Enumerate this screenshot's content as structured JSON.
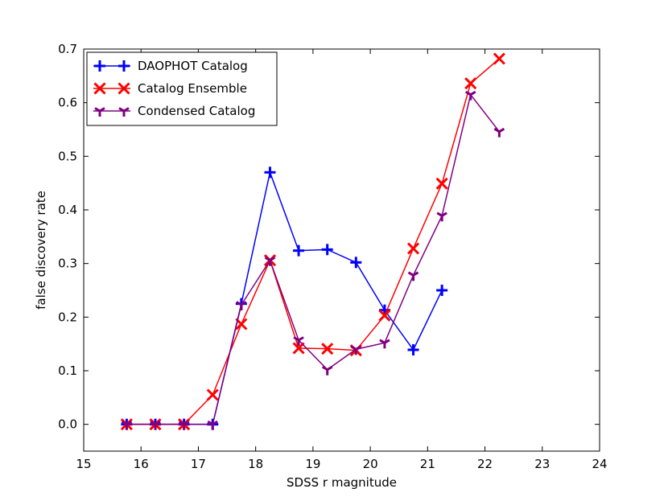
{
  "chart_data": {
    "type": "line",
    "title": "",
    "xlabel": "SDSS r magnitude",
    "ylabel": "false discovery rate",
    "xlim": [
      15,
      24
    ],
    "ylim": [
      -0.05,
      0.7
    ],
    "xticks": [
      15,
      16,
      17,
      18,
      19,
      20,
      21,
      22,
      23,
      24
    ],
    "yticks": [
      0.0,
      0.1,
      0.2,
      0.3,
      0.4,
      0.5,
      0.6,
      0.7
    ],
    "xtick_labels": [
      "15",
      "16",
      "17",
      "18",
      "19",
      "20",
      "21",
      "22",
      "23",
      "24"
    ],
    "ytick_labels": [
      "0.0",
      "0.1",
      "0.2",
      "0.3",
      "0.4",
      "0.5",
      "0.6",
      "0.7"
    ],
    "grid": false,
    "legend_position": "top-left",
    "series": [
      {
        "name": "DAOPHOT Catalog",
        "color": "#0000ff",
        "marker": "plus",
        "x": [
          15.75,
          16.25,
          16.75,
          17.25,
          17.75,
          18.25,
          18.75,
          19.25,
          19.75,
          20.25,
          20.75,
          21.25
        ],
        "values": [
          0.0,
          0.0,
          0.0,
          0.0,
          0.225,
          0.47,
          0.324,
          0.326,
          0.302,
          0.213,
          0.139,
          0.25
        ]
      },
      {
        "name": "Catalog Ensemble",
        "color": "#ff0000",
        "marker": "x",
        "x": [
          15.75,
          16.25,
          16.75,
          17.25,
          17.75,
          18.25,
          18.75,
          19.25,
          19.75,
          20.25,
          20.75,
          21.25,
          21.75,
          22.25
        ],
        "values": [
          0.0,
          0.0,
          0.0,
          0.055,
          0.187,
          0.306,
          0.142,
          0.141,
          0.138,
          0.203,
          0.328,
          0.449,
          0.636,
          0.682
        ]
      },
      {
        "name": "Condensed Catalog",
        "color": "#800080",
        "marker": "tri_down",
        "x": [
          15.75,
          16.25,
          16.75,
          17.25,
          17.75,
          18.25,
          18.75,
          19.25,
          19.75,
          20.25,
          20.75,
          21.25,
          21.75,
          22.25
        ],
        "values": [
          0.0,
          0.0,
          0.0,
          0.0,
          0.223,
          0.306,
          0.157,
          0.102,
          0.14,
          0.152,
          0.278,
          0.389,
          0.615,
          0.546
        ]
      }
    ]
  }
}
